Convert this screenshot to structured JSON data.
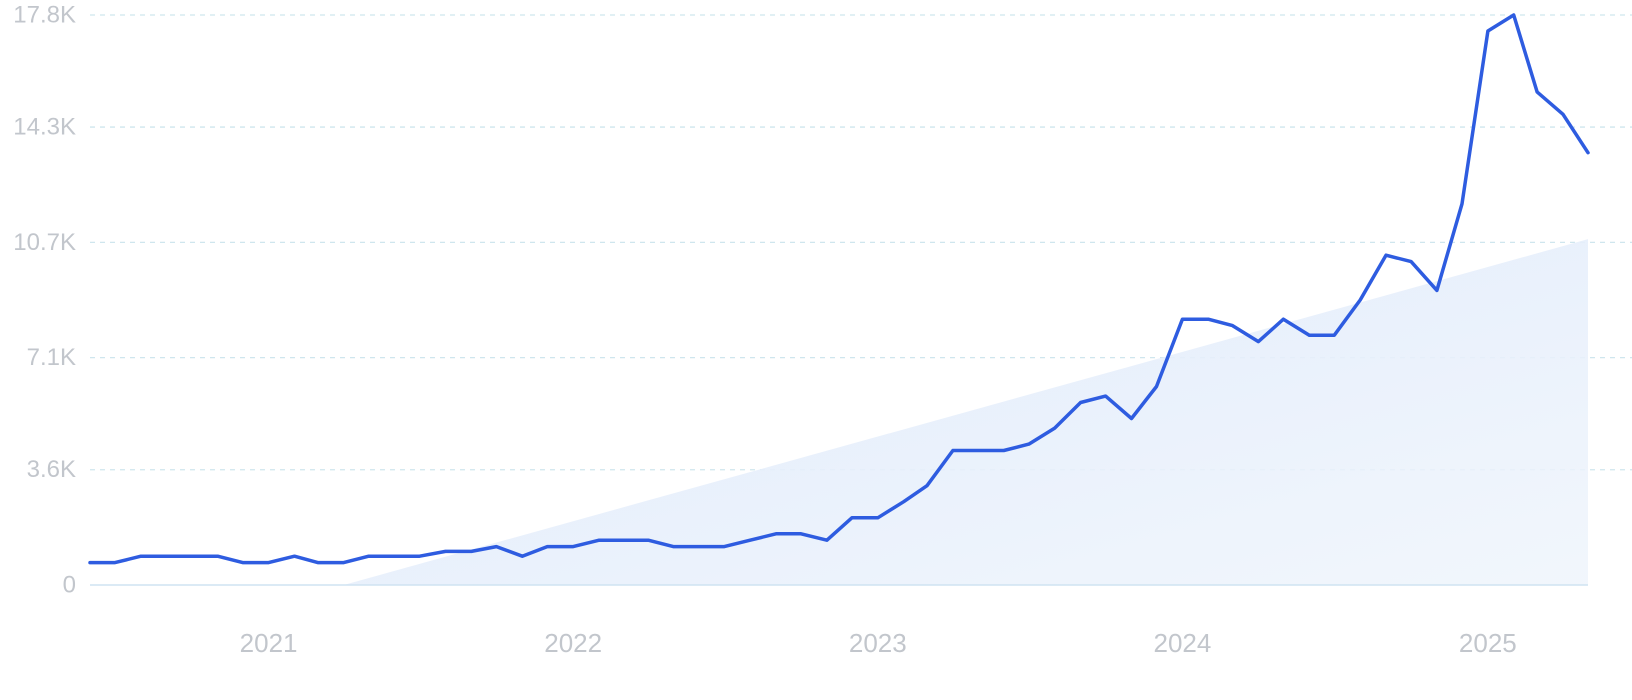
{
  "chart_data": {
    "type": "line",
    "title": "",
    "xlabel": "",
    "ylabel": "",
    "ylim": [
      0,
      17800
    ],
    "xlim": [
      "2020-06-01",
      "2025-05-01"
    ],
    "grid": true,
    "colors": {
      "line": "#2e5ce0",
      "trend_fill": "#e3eefb",
      "grid": "#cfe6ee",
      "baseline": "#cfe3f2",
      "tick_text": "#c2c6cc"
    },
    "y_ticks": [
      {
        "value": 0,
        "label": "0"
      },
      {
        "value": 3600,
        "label": "3.6K"
      },
      {
        "value": 7100,
        "label": "7.1K"
      },
      {
        "value": 10700,
        "label": "10.7K"
      },
      {
        "value": 14300,
        "label": "14.3K"
      },
      {
        "value": 17800,
        "label": "17.8K"
      }
    ],
    "x_ticks": [
      {
        "date": "2021-01-01",
        "label": "2021"
      },
      {
        "date": "2022-01-01",
        "label": "2022"
      },
      {
        "date": "2023-01-01",
        "label": "2023"
      },
      {
        "date": "2024-01-01",
        "label": "2024"
      },
      {
        "date": "2025-01-01",
        "label": "2025"
      }
    ],
    "trend": {
      "start": {
        "date": "2021-04-01",
        "value": 0
      },
      "end": {
        "date": "2025-05-01",
        "value": 10800
      }
    },
    "series": [
      {
        "dates": [
          "2020-06-01",
          "2020-07-01",
          "2020-08-01",
          "2020-09-01",
          "2020-10-01",
          "2020-11-01",
          "2020-12-01",
          "2021-01-01",
          "2021-02-01",
          "2021-03-01",
          "2021-04-01",
          "2021-05-01",
          "2021-06-01",
          "2021-07-01",
          "2021-08-01",
          "2021-09-01",
          "2021-10-01",
          "2021-11-01",
          "2021-12-01",
          "2022-01-01",
          "2022-02-01",
          "2022-03-01",
          "2022-04-01",
          "2022-05-01",
          "2022-06-01",
          "2022-07-01",
          "2022-08-01",
          "2022-09-01",
          "2022-10-01",
          "2022-11-01",
          "2022-12-01",
          "2023-01-01",
          "2023-02-01",
          "2023-03-01",
          "2023-04-01",
          "2023-05-01",
          "2023-06-01",
          "2023-07-01",
          "2023-08-01",
          "2023-09-01",
          "2023-10-01",
          "2023-11-01",
          "2023-12-01",
          "2024-01-01",
          "2024-02-01",
          "2024-03-01",
          "2024-04-01",
          "2024-05-01",
          "2024-06-01",
          "2024-07-01",
          "2024-08-01",
          "2024-09-01",
          "2024-10-01",
          "2024-11-01",
          "2024-12-01",
          "2025-01-01",
          "2025-02-01",
          "2025-03-01",
          "2025-04-01",
          "2025-05-01"
        ],
        "values": [
          700,
          700,
          900,
          900,
          900,
          900,
          700,
          700,
          900,
          700,
          700,
          900,
          900,
          900,
          1050,
          1050,
          1200,
          900,
          1200,
          1200,
          1400,
          1400,
          1400,
          1200,
          1200,
          1200,
          1400,
          1600,
          1600,
          1400,
          2100,
          2100,
          2600,
          3100,
          4200,
          4200,
          4200,
          4400,
          4900,
          5700,
          5900,
          5200,
          6200,
          8300,
          8300,
          8100,
          7600,
          8300,
          7800,
          7800,
          8900,
          10300,
          10100,
          9200,
          11900,
          17300,
          17800,
          15400,
          14700,
          13500
        ]
      }
    ]
  }
}
